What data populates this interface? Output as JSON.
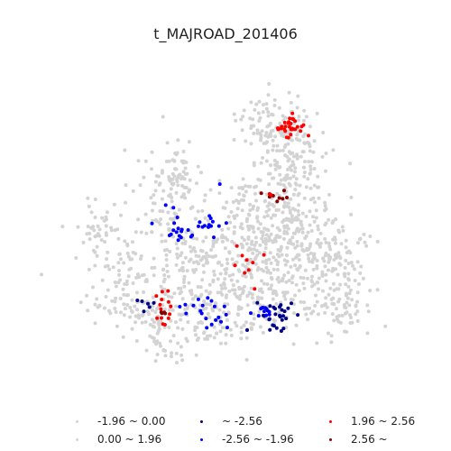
{
  "title": "t_MAJROAD_201406",
  "legend": [
    {
      "label": "-1.96 ~ 0.00",
      "color": "#d3d3d3"
    },
    {
      "label": "0.00 ~ 1.96",
      "color": "#d3d3d3"
    },
    {
      "label": "~ -2.56",
      "color": "#00008b"
    },
    {
      "label": "-2.56 ~ -1.96",
      "color": "#0000ff"
    },
    {
      "label": "1.96 ~ 2.56",
      "color": "#ff0000"
    },
    {
      "label": "2.56 ~",
      "color": "#8b0000"
    }
  ]
}
